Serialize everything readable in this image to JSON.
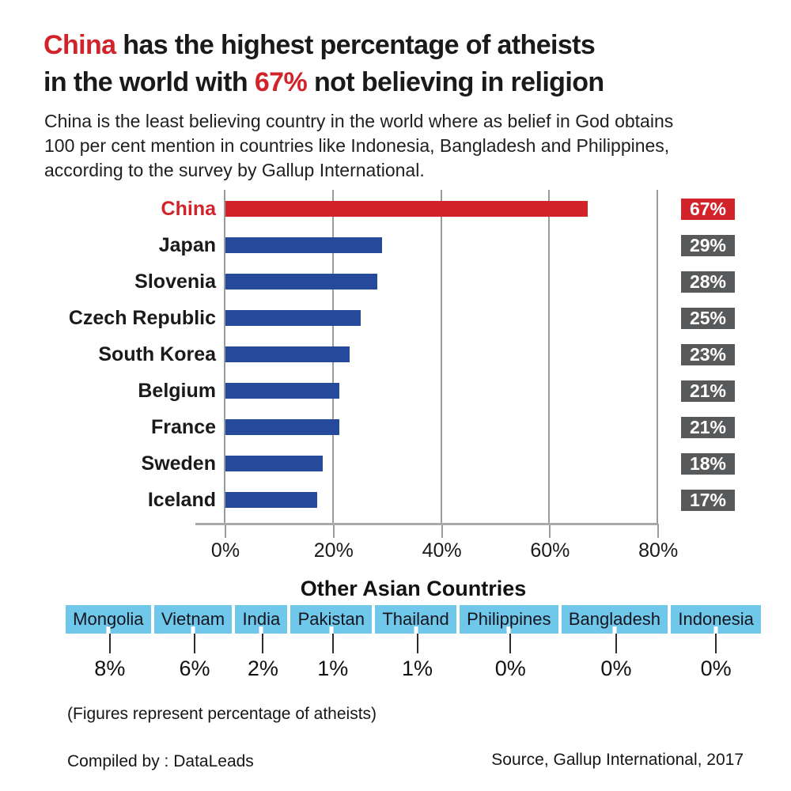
{
  "colors": {
    "accent_red": "#D2232A",
    "bar_blue": "#254A9B",
    "badge_gray": "#58595B",
    "band_blue": "#6FC7EA",
    "grid_gray": "#9B9B9B",
    "axis_gray": "#A9A9A9",
    "text_black": "#1A1A1A"
  },
  "title": {
    "line1_highlight": "China",
    "line1_rest": " has the highest percentage of atheists",
    "line2_pre": "in the world with ",
    "line2_highlight": "67%",
    "line2_post": " not believing in religion"
  },
  "subtitle": {
    "line1": "China is the least believing country in the world where as belief in God obtains",
    "line2": "100 per cent mention in countries like Indonesia, Bangladesh and Philippines,",
    "line3": "according to the survey by Gallup International."
  },
  "chart_data": [
    {
      "type": "bar",
      "orientation": "horizontal",
      "categories": [
        "China",
        "Japan",
        "Slovenia",
        "Czech Republic",
        "South Korea",
        "Belgium",
        "France",
        "Sweden",
        "Iceland"
      ],
      "values": [
        67,
        29,
        28,
        25,
        23,
        21,
        21,
        18,
        17
      ],
      "value_labels": [
        "67%",
        "29%",
        "28%",
        "25%",
        "23%",
        "21%",
        "21%",
        "18%",
        "17%"
      ],
      "highlight_index": 0,
      "xtick_labels": [
        "0%",
        "20%",
        "40%",
        "60%",
        "80%"
      ],
      "xtick_values": [
        0,
        20,
        40,
        60,
        80
      ],
      "xlim": [
        0,
        80
      ],
      "grid": true,
      "unit": "%"
    },
    {
      "type": "table",
      "title": "Other Asian Countries",
      "categories": [
        "Mongolia",
        "Vietnam",
        "India",
        "Pakistan",
        "Thailand",
        "Philippines",
        "Bangladesh",
        "Indonesia"
      ],
      "values": [
        "8%",
        "6%",
        "2%",
        "1%",
        "1%",
        "0%",
        "0%",
        "0%"
      ]
    }
  ],
  "footnote": "(Figures represent percentage of atheists)",
  "credits": {
    "compiled_by": "Compiled by : DataLeads",
    "source": "Source, Gallup International, 2017"
  }
}
